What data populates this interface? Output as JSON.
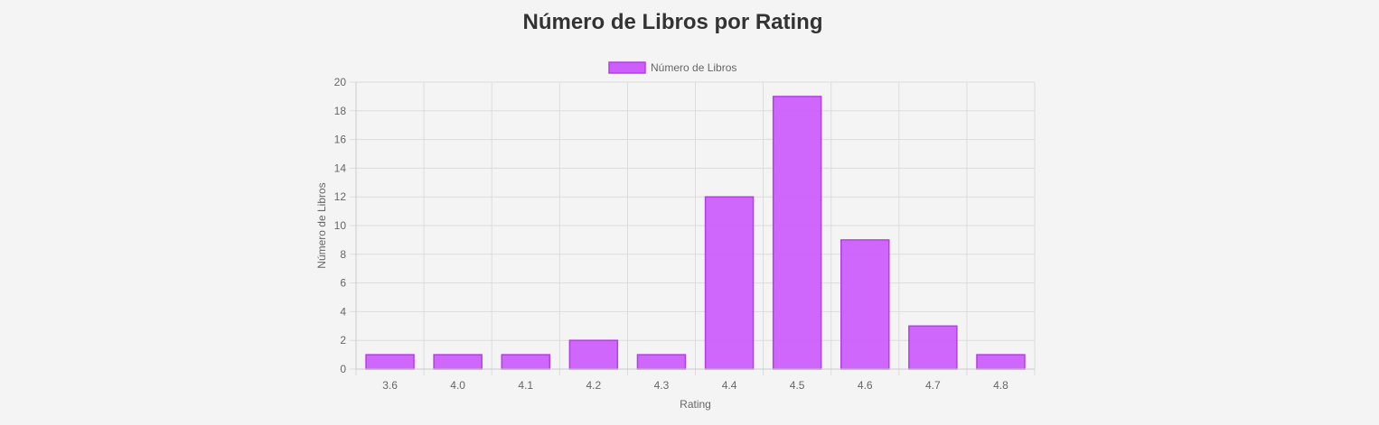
{
  "page": {
    "title": "Número de Libros por Rating"
  },
  "chart_data": {
    "type": "bar",
    "categories": [
      "3.6",
      "4.0",
      "4.1",
      "4.2",
      "4.3",
      "4.4",
      "4.5",
      "4.6",
      "4.7",
      "4.8"
    ],
    "series": [
      {
        "name": "Número de Libros",
        "values": [
          1,
          1,
          1,
          2,
          1,
          12,
          19,
          9,
          3,
          1
        ]
      }
    ],
    "title": "",
    "xlabel": "Rating",
    "ylabel": "Número de Libros",
    "ylim": [
      0,
      20
    ],
    "yticks": [
      0,
      2,
      4,
      6,
      8,
      10,
      12,
      14,
      16,
      18,
      20
    ],
    "grid": true,
    "legend_position": "top-center",
    "colors": {
      "bar_fill": "#cc5ffc",
      "bar_border": "#b43fe6",
      "grid": "#dcdcdc",
      "axis_text": "#666666",
      "title_text": "#333333",
      "background": "#f4f4f4"
    }
  }
}
